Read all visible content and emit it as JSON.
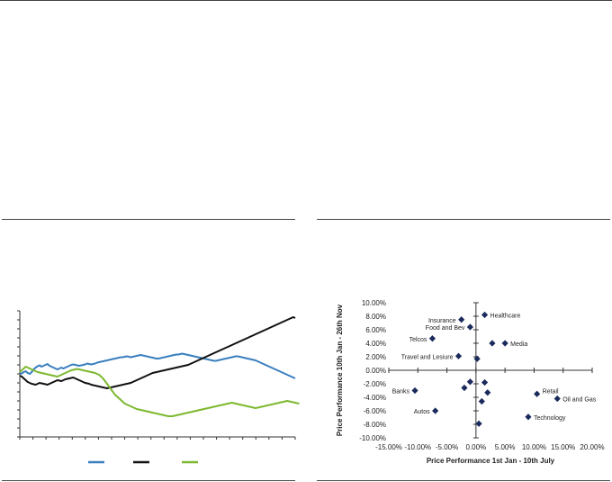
{
  "colors": {
    "rule": "#444444",
    "blue": "#3a7fbf",
    "black": "#111111",
    "green": "#7cb82f",
    "marker": "#1b2a5c",
    "axis": "#333333"
  },
  "left_chart": {
    "legend": [
      {
        "color": "#3a7fbf",
        "label": ""
      },
      {
        "color": "#111111",
        "label": ""
      },
      {
        "color": "#7cb82f",
        "label": ""
      }
    ]
  },
  "chart_data": [
    {
      "type": "line",
      "title": "",
      "xlabel": "",
      "ylabel": "",
      "ylim": [
        0,
        14
      ],
      "x_points": 140,
      "series": [
        {
          "color": "#3a7fbf",
          "values": [
            7.0,
            7.05,
            7.2,
            7.3,
            7.1,
            7.0,
            7.2,
            7.5,
            7.7,
            7.85,
            7.95,
            7.8,
            7.9,
            8.0,
            8.1,
            7.9,
            7.8,
            7.7,
            7.6,
            7.5,
            7.6,
            7.7,
            7.6,
            7.7,
            7.8,
            7.9,
            8.0,
            8.05,
            8.0,
            7.95,
            7.9,
            7.95,
            8.0,
            8.05,
            8.15,
            8.1,
            8.05,
            8.1,
            8.15,
            8.25,
            8.3,
            8.35,
            8.4,
            8.45,
            8.5,
            8.55,
            8.6,
            8.65,
            8.7,
            8.75,
            8.8,
            8.85,
            8.85,
            8.9,
            8.95,
            8.9,
            8.85,
            8.9,
            8.95,
            9.0,
            9.05,
            9.1,
            9.05,
            9.0,
            8.95,
            8.9,
            8.85,
            8.8,
            8.75,
            8.7,
            8.7,
            8.75,
            8.8,
            8.85,
            8.9,
            8.95,
            9.0,
            9.05,
            9.1,
            9.15,
            9.15,
            9.2,
            9.25,
            9.2,
            9.15,
            9.1,
            9.05,
            9.0,
            8.95,
            8.9,
            8.85,
            8.8,
            8.75,
            8.7,
            8.65,
            8.6,
            8.55,
            8.5,
            8.45,
            8.45,
            8.5,
            8.55,
            8.6,
            8.65,
            8.7,
            8.75,
            8.8,
            8.85,
            8.9,
            8.95,
            8.95,
            8.9,
            8.85,
            8.8,
            8.75,
            8.7,
            8.65,
            8.6,
            8.55,
            8.5,
            8.4,
            8.3,
            8.2,
            8.1,
            8.0,
            7.9,
            7.8,
            7.7,
            7.6,
            7.5,
            7.4,
            7.3,
            7.2,
            7.1,
            7.0,
            6.9,
            6.8,
            6.7,
            6.6,
            6.5
          ]
        },
        {
          "color": "#111111",
          "values": [
            6.8,
            6.7,
            6.5,
            6.3,
            6.1,
            6.0,
            5.9,
            5.85,
            5.8,
            5.9,
            6.0,
            5.95,
            5.9,
            5.85,
            5.8,
            5.9,
            6.0,
            6.1,
            6.2,
            6.3,
            6.25,
            6.2,
            6.3,
            6.4,
            6.45,
            6.5,
            6.55,
            6.6,
            6.5,
            6.4,
            6.3,
            6.2,
            6.1,
            6.0,
            5.95,
            5.9,
            5.8,
            5.75,
            5.7,
            5.65,
            5.6,
            5.55,
            5.5,
            5.45,
            5.4,
            5.45,
            5.5,
            5.55,
            5.6,
            5.65,
            5.7,
            5.75,
            5.8,
            5.85,
            5.9,
            5.95,
            6.0,
            6.1,
            6.2,
            6.3,
            6.4,
            6.5,
            6.6,
            6.7,
            6.8,
            6.9,
            7.0,
            7.1,
            7.15,
            7.2,
            7.25,
            7.3,
            7.35,
            7.4,
            7.45,
            7.5,
            7.55,
            7.6,
            7.65,
            7.7,
            7.75,
            7.8,
            7.85,
            7.9,
            7.95,
            8.0,
            8.1,
            8.2,
            8.3,
            8.4,
            8.5,
            8.6,
            8.7,
            8.8,
            8.9,
            9.0,
            9.1,
            9.2,
            9.3,
            9.4,
            9.5,
            9.6,
            9.7,
            9.8,
            9.9,
            10.0,
            10.1,
            10.2,
            10.3,
            10.4,
            10.5,
            10.6,
            10.7,
            10.8,
            10.9,
            11.0,
            11.1,
            11.2,
            11.3,
            11.4,
            11.5,
            11.6,
            11.7,
            11.8,
            11.9,
            12.0,
            12.1,
            12.2,
            12.3,
            12.4,
            12.5,
            12.6,
            12.7,
            12.8,
            12.9,
            13.0,
            13.1,
            13.2,
            13.3,
            13.2
          ]
        },
        {
          "color": "#7cb82f",
          "values": [
            7.2,
            7.4,
            7.6,
            7.8,
            7.7,
            7.6,
            7.5,
            7.4,
            7.3,
            7.2,
            7.15,
            7.1,
            7.05,
            7.0,
            6.95,
            6.9,
            6.85,
            6.8,
            6.75,
            6.7,
            6.8,
            6.9,
            7.0,
            7.1,
            7.2,
            7.3,
            7.4,
            7.45,
            7.5,
            7.55,
            7.5,
            7.45,
            7.4,
            7.35,
            7.3,
            7.25,
            7.2,
            7.15,
            7.1,
            7.0,
            6.9,
            6.7,
            6.5,
            6.2,
            5.9,
            5.6,
            5.3,
            5.0,
            4.7,
            4.5,
            4.3,
            4.1,
            3.9,
            3.7,
            3.6,
            3.5,
            3.4,
            3.3,
            3.2,
            3.1,
            3.05,
            3.0,
            2.95,
            2.9,
            2.85,
            2.8,
            2.75,
            2.7,
            2.65,
            2.6,
            2.55,
            2.5,
            2.45,
            2.4,
            2.35,
            2.3,
            2.3,
            2.3,
            2.35,
            2.4,
            2.45,
            2.5,
            2.55,
            2.6,
            2.65,
            2.7,
            2.75,
            2.8,
            2.85,
            2.9,
            2.95,
            3.0,
            3.05,
            3.1,
            3.15,
            3.2,
            3.25,
            3.3,
            3.35,
            3.4,
            3.45,
            3.5,
            3.55,
            3.6,
            3.65,
            3.7,
            3.75,
            3.8,
            3.75,
            3.7,
            3.65,
            3.6,
            3.55,
            3.5,
            3.45,
            3.4,
            3.35,
            3.3,
            3.25,
            3.2,
            3.25,
            3.3,
            3.35,
            3.4,
            3.45,
            3.5,
            3.55,
            3.6,
            3.65,
            3.7,
            3.75,
            3.8,
            3.85,
            3.9,
            3.95,
            4.0,
            3.95,
            3.9,
            3.85,
            3.8,
            3.75,
            3.7
          ]
        }
      ]
    },
    {
      "type": "scatter",
      "title": "",
      "xlabel": "Price Performance 1st Jan - 10th July",
      "ylabel": "Price Performance 10th Jan - 26th Nov",
      "xlim": [
        -15,
        20
      ],
      "ylim": [
        -10,
        10
      ],
      "x_ticks": [
        "-15.00%",
        "-10.00%",
        "-5.00%",
        "0.00%",
        "5.00%",
        "10.00%",
        "15.00%",
        "20.00%"
      ],
      "y_ticks": [
        "10.00%",
        "8.00%",
        "6.00%",
        "4.00%",
        "2.00%",
        "0.00%",
        "-2.00%",
        "-4.00%",
        "-6.00%",
        "-8.00%",
        "-10.00%"
      ],
      "points": [
        {
          "label": "Healthcare",
          "x": 1.5,
          "y": 8.2,
          "label_pos": "right"
        },
        {
          "label": "Insurance",
          "x": -2.5,
          "y": 7.5,
          "label_pos": "left"
        },
        {
          "label": "Food and Bev",
          "x": -1.0,
          "y": 6.4,
          "label_pos": "left"
        },
        {
          "label": "Telcos",
          "x": -7.5,
          "y": 4.7,
          "label_pos": "left"
        },
        {
          "label": "Media",
          "x": 5.0,
          "y": 4.0,
          "label_pos": "right"
        },
        {
          "label": "",
          "x": 2.8,
          "y": 4.0,
          "label_pos": "none"
        },
        {
          "label": "Travel and Lesiure",
          "x": -3.0,
          "y": 2.1,
          "label_pos": "left"
        },
        {
          "label": "",
          "x": 0.2,
          "y": 1.7,
          "label_pos": "none"
        },
        {
          "label": "",
          "x": -1.0,
          "y": -1.7,
          "label_pos": "none"
        },
        {
          "label": "",
          "x": -2.0,
          "y": -2.6,
          "label_pos": "none"
        },
        {
          "label": "",
          "x": 1.5,
          "y": -1.8,
          "label_pos": "none"
        },
        {
          "label": "",
          "x": 2.0,
          "y": -3.3,
          "label_pos": "none"
        },
        {
          "label": "",
          "x": 1.0,
          "y": -4.6,
          "label_pos": "none"
        },
        {
          "label": "Banks",
          "x": -10.5,
          "y": -3.0,
          "label_pos": "left"
        },
        {
          "label": "Retail",
          "x": 10.5,
          "y": -3.5,
          "label_pos": "right-up"
        },
        {
          "label": "Oil and  Gas",
          "x": 14.0,
          "y": -4.2,
          "label_pos": "right"
        },
        {
          "label": "Autos",
          "x": -7.0,
          "y": -6.0,
          "label_pos": "left"
        },
        {
          "label": "Technology",
          "x": 9.0,
          "y": -6.9,
          "label_pos": "right"
        },
        {
          "label": "",
          "x": 0.5,
          "y": -7.9,
          "label_pos": "none"
        }
      ]
    }
  ]
}
